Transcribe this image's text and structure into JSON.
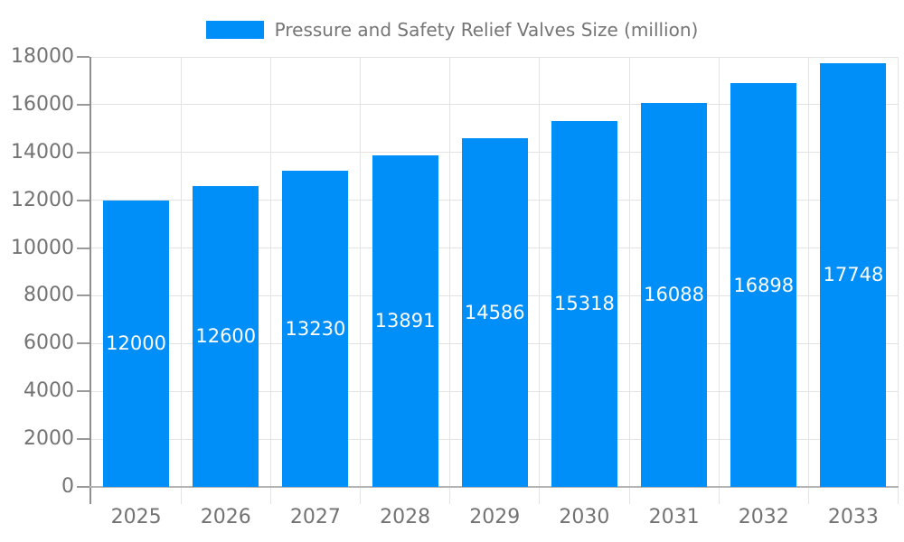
{
  "chart_data": {
    "type": "bar",
    "title": "Pressure and Safety Relief Valves Size (million)",
    "categories": [
      "2025",
      "2026",
      "2027",
      "2028",
      "2029",
      "2030",
      "2031",
      "2032",
      "2033"
    ],
    "values": [
      12000,
      12600,
      13230,
      13891,
      14586,
      15318,
      16088,
      16898,
      17748
    ],
    "xlabel": "",
    "ylabel": "",
    "ylim": [
      0,
      18000
    ],
    "ytick_step": 2000,
    "ytick_labels": [
      "0",
      "2000",
      "4000",
      "6000",
      "8000",
      "10000",
      "12000",
      "14000",
      "16000",
      "18000"
    ],
    "grid": true,
    "legend_position": "top-center",
    "value_labels": "inside-center"
  },
  "legend": {
    "label": "Pressure and Safety Relief Valves Size (million)"
  },
  "colors": {
    "bar": "#008FF8",
    "grid": "#e3e3e3",
    "y_axis": "#8f8f8f",
    "x_axis": "#b3b3b3",
    "tick": "#999999",
    "tick_label": "#737373",
    "legend_text": "#757575",
    "value_label": "#ffffff",
    "background": "#ffffff"
  }
}
